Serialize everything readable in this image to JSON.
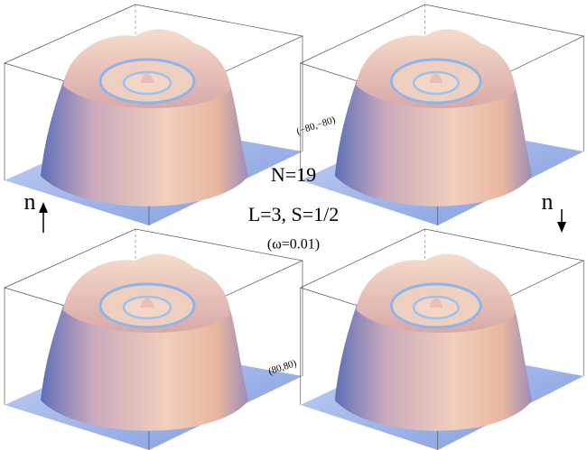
{
  "labels": {
    "n_up": "n",
    "n_down": "n",
    "particle_number": "N=19",
    "quantum_numbers": "L=3, S=1/2",
    "omega": "(ω=0.01)",
    "corner_min": "(−80,−80)",
    "corner_max": "(80,80)"
  }
}
